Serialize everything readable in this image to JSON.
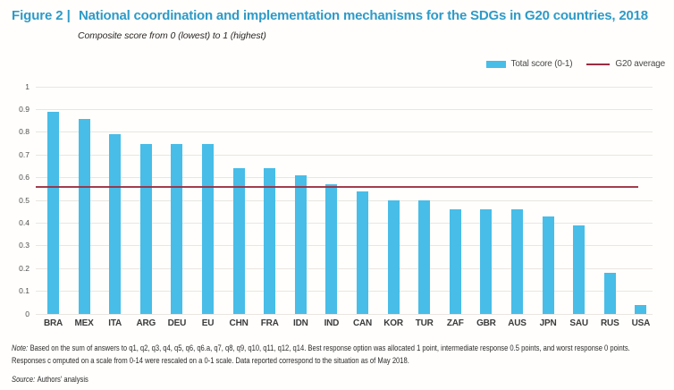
{
  "figure": {
    "label": "Figure 2 |",
    "title": "National coordination and implementation mechanisms for the SDGs in G20 countries, 2018",
    "subtitle": "Composite score from 0 (lowest) to 1 (highest)"
  },
  "legend": {
    "series_label": "Total score (0-1)",
    "average_label": "G20 average"
  },
  "chart_data": {
    "type": "bar",
    "categories": [
      "BRA",
      "MEX",
      "ITA",
      "ARG",
      "DEU",
      "EU",
      "CHN",
      "FRA",
      "IDN",
      "IND",
      "CAN",
      "KOR",
      "TUR",
      "ZAF",
      "GBR",
      "AUS",
      "JPN",
      "SAU",
      "RUS",
      "USA"
    ],
    "values": [
      0.89,
      0.86,
      0.79,
      0.75,
      0.75,
      0.75,
      0.64,
      0.64,
      0.61,
      0.57,
      0.54,
      0.5,
      0.5,
      0.46,
      0.46,
      0.46,
      0.43,
      0.39,
      0.18,
      0.04
    ],
    "g20_average": 0.56,
    "y_ticks": [
      0,
      0.1,
      0.2,
      0.3,
      0.4,
      0.5,
      0.6,
      0.7,
      0.8,
      0.9,
      1
    ],
    "ylim": [
      0,
      1
    ],
    "grid": true,
    "legend_position": "top-right",
    "bar_color": "#47bde8",
    "average_line_color": "#9b2c3f",
    "title_color": "#2e9ac8"
  },
  "notes": {
    "note_label": "Note:",
    "note_text": "Based on the sum of answers to q1, q2, q3, q4, q5, q6, q6.a, q7, q8, q9, q10, q11, q12, q14. Best response option was allocated 1 point, intermediate response 0.5 points, and worst response 0 points. Responses c omputed on a scale from 0-14 were rescaled on a 0-1 scale. Data reported correspond to the situation as of May 2018.",
    "source_label": "Source:",
    "source_text": "Authors' analysis"
  }
}
